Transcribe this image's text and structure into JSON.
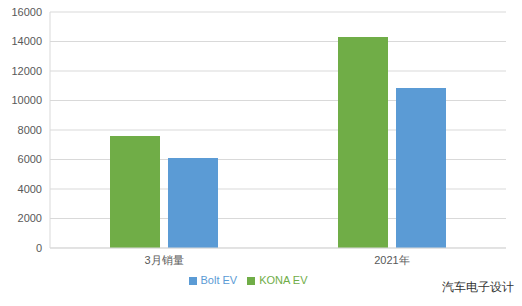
{
  "chart_data": {
    "type": "bar",
    "categories": [
      "3月销量",
      "2021年"
    ],
    "series": [
      {
        "name": "KONA EV",
        "color": "#70ad47",
        "values": [
          7600,
          14300
        ]
      },
      {
        "name": "Bolt EV",
        "color": "#5b9bd5",
        "values": [
          6100,
          10850
        ]
      }
    ],
    "ylim": [
      0,
      16000
    ],
    "yticks": [
      0,
      2000,
      4000,
      6000,
      8000,
      10000,
      12000,
      14000,
      16000
    ],
    "grid": true,
    "legend": "bottom",
    "annotations": [
      "汽车电子设计"
    ]
  }
}
